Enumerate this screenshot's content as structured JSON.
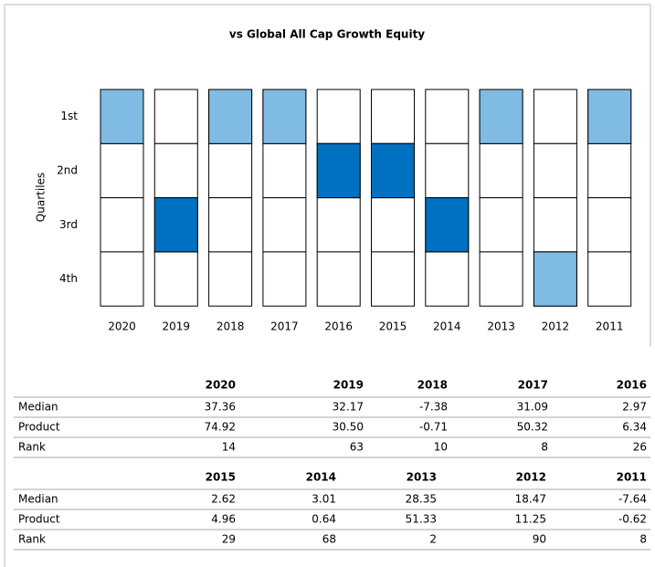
{
  "chart_data": {
    "type": "quartile",
    "title": "vs Global All Cap Growth Equity",
    "y_label": "Quartiles",
    "quartile_labels": [
      "1st",
      "2nd",
      "3rd",
      "4th"
    ],
    "categories": [
      "2020",
      "2019",
      "2018",
      "2017",
      "2016",
      "2015",
      "2014",
      "2013",
      "2012",
      "2011"
    ],
    "values": [
      1,
      3,
      1,
      1,
      2,
      2,
      3,
      1,
      4,
      1
    ],
    "colors": [
      "#7fbbe3",
      "#0070c0",
      "#7fbbe3",
      "#7fbbe3",
      "#0070c0",
      "#0070c0",
      "#0070c0",
      "#7fbbe3",
      "#7fbbe3",
      "#7fbbe3"
    ]
  },
  "tables": [
    {
      "header": [
        "2020",
        "2019",
        "2018",
        "2017",
        "2016"
      ],
      "rows": [
        [
          "Median",
          "37.36",
          "32.17",
          "-7.38",
          "31.09",
          "2.97"
        ],
        [
          "Product",
          "74.92",
          "30.50",
          "-0.71",
          "50.32",
          "6.34"
        ],
        [
          "Rank",
          "14",
          "63",
          "10",
          "8",
          "26"
        ]
      ]
    },
    {
      "header": [
        "2015",
        "2014",
        "2013",
        "2012",
        "2011"
      ],
      "rows": [
        [
          "Median",
          "2.62",
          "3.01",
          "28.35",
          "18.47",
          "-7.64"
        ],
        [
          "Product",
          "4.96",
          "0.64",
          "51.33",
          "11.25",
          "-0.62"
        ],
        [
          "Rank",
          "29",
          "68",
          "2",
          "90",
          "8"
        ]
      ]
    }
  ]
}
